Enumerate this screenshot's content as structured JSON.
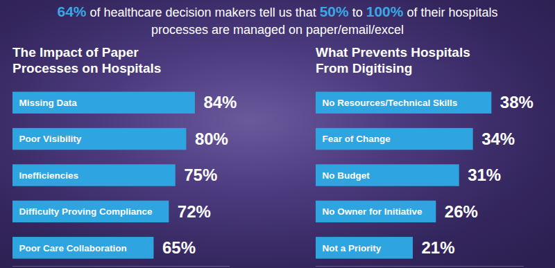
{
  "headline": {
    "parts": [
      {
        "text": "64%",
        "color": "#3aa6e3"
      },
      {
        "text": " of healthcare decision makers tell us that "
      },
      {
        "text": "50%",
        "color": "#3aa6e3"
      },
      {
        "text": " to "
      },
      {
        "text": "100%",
        "color": "#3aa6e3"
      },
      {
        "text": " of their hospitals\nprocesses are managed on paper/email/excel"
      }
    ]
  },
  "chart_data": [
    {
      "type": "bar",
      "orientation": "horizontal",
      "title": "The Impact of Paper\nProcesses on Hospitals",
      "categories": [
        "Missing Data",
        "Poor Visibility",
        "Inefficiencies",
        "Difficulty Proving Compliance",
        "Poor Care Collaboration"
      ],
      "values": [
        84,
        80,
        75,
        72,
        65
      ],
      "value_labels": [
        "84%",
        "80%",
        "75%",
        "72%",
        "65%"
      ],
      "color": "#2ea5e1",
      "xlim": [
        0,
        100
      ],
      "data_labels": true,
      "tick_labels": false,
      "grid": false
    },
    {
      "type": "bar",
      "orientation": "horizontal",
      "title": "What Prevents Hospitals\nFrom Digitising",
      "categories": [
        "No Resources/Technical Skills",
        "Fear of Change",
        "No Budget",
        "No Owner for Initiative",
        "Not a Priority"
      ],
      "values": [
        38,
        34,
        31,
        26,
        21
      ],
      "value_labels": [
        "38%",
        "34%",
        "31%",
        "26%",
        "21%"
      ],
      "color": "#2ea5e1",
      "xlim": [
        0,
        45
      ],
      "data_labels": true,
      "tick_labels": false,
      "grid": false
    }
  ]
}
